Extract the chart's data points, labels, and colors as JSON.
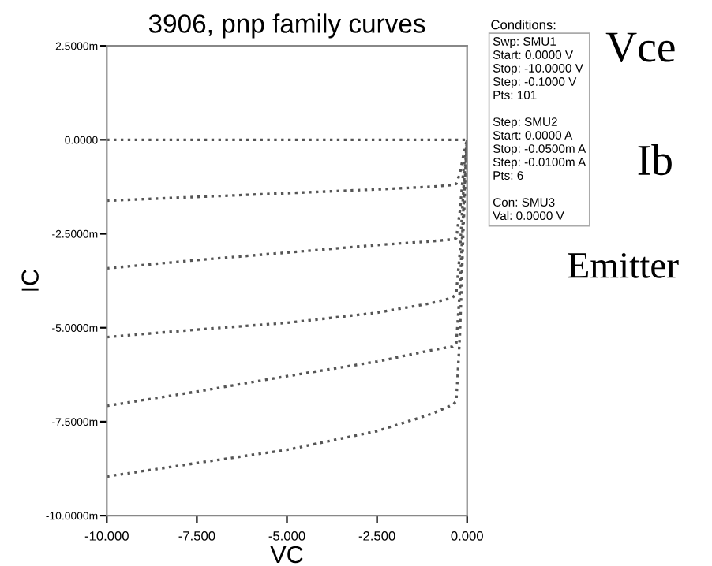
{
  "chart_data": {
    "type": "line",
    "title": "3906, pnp family curves",
    "xlabel": "VC",
    "ylabel": "IC",
    "x": [
      -10,
      -7.5,
      -5,
      -2.5,
      -1,
      -0.4,
      -0.3,
      -0.2,
      -0.1,
      0
    ],
    "series": [
      {
        "color": "#555555",
        "values": [
          0,
          0,
          0,
          0,
          0,
          0,
          0,
          0,
          0,
          0
        ]
      },
      {
        "color": "#555555",
        "values": [
          -1.62,
          -1.52,
          -1.42,
          -1.32,
          -1.25,
          -1.2,
          -1.17,
          -0.9,
          -0.4,
          0
        ]
      },
      {
        "color": "#555555",
        "values": [
          -3.42,
          -3.2,
          -3.0,
          -2.8,
          -2.7,
          -2.65,
          -2.62,
          -1.9,
          -0.8,
          0
        ]
      },
      {
        "color": "#555555",
        "values": [
          -5.25,
          -5.05,
          -4.87,
          -4.6,
          -4.35,
          -4.2,
          -4.08,
          -3.0,
          -1.3,
          0
        ]
      },
      {
        "color": "#555555",
        "values": [
          -7.08,
          -6.7,
          -6.29,
          -5.9,
          -5.6,
          -5.5,
          -5.42,
          -4.0,
          -1.8,
          0
        ]
      },
      {
        "color": "#555555",
        "values": [
          -8.96,
          -8.6,
          -8.25,
          -7.75,
          -7.3,
          -7.05,
          -6.96,
          -5.2,
          -2.3,
          0
        ]
      }
    ],
    "line_style": "dotted",
    "xlim": [
      -10,
      0
    ],
    "ylim": [
      -10,
      2.5
    ],
    "xticks": [
      {
        "value": -10,
        "label": "-10.000"
      },
      {
        "value": -7.5,
        "label": "-7.500"
      },
      {
        "value": -5,
        "label": "-5.000"
      },
      {
        "value": -2.5,
        "label": "-2.500"
      },
      {
        "value": 0,
        "label": "0.000"
      }
    ],
    "yticks": [
      {
        "value": -10,
        "label": "-10.0000m"
      },
      {
        "value": -7.5,
        "label": "-7.5000m"
      },
      {
        "value": -5,
        "label": "-5.0000m"
      },
      {
        "value": -2.5,
        "label": "-2.5000m"
      },
      {
        "value": 0,
        "label": "0.0000"
      },
      {
        "value": 2.5,
        "label": "2.5000m"
      }
    ],
    "grid": false,
    "legend": false,
    "annotations": [
      "Conditions:",
      "Swp: SMU1\nStart: 0.0000 V\nStop: -10.0000 V\nStep: -0.1000 V\nPts: 101\n\nStep: SMU2\nStart: 0.0000 A\nStop: -0.0500m A\nStep: -0.0100m A\nPts: 6\n\nCon: SMU3\nVal: 0.0000 V",
      "Vce",
      "Ib",
      "Emitter"
    ]
  }
}
